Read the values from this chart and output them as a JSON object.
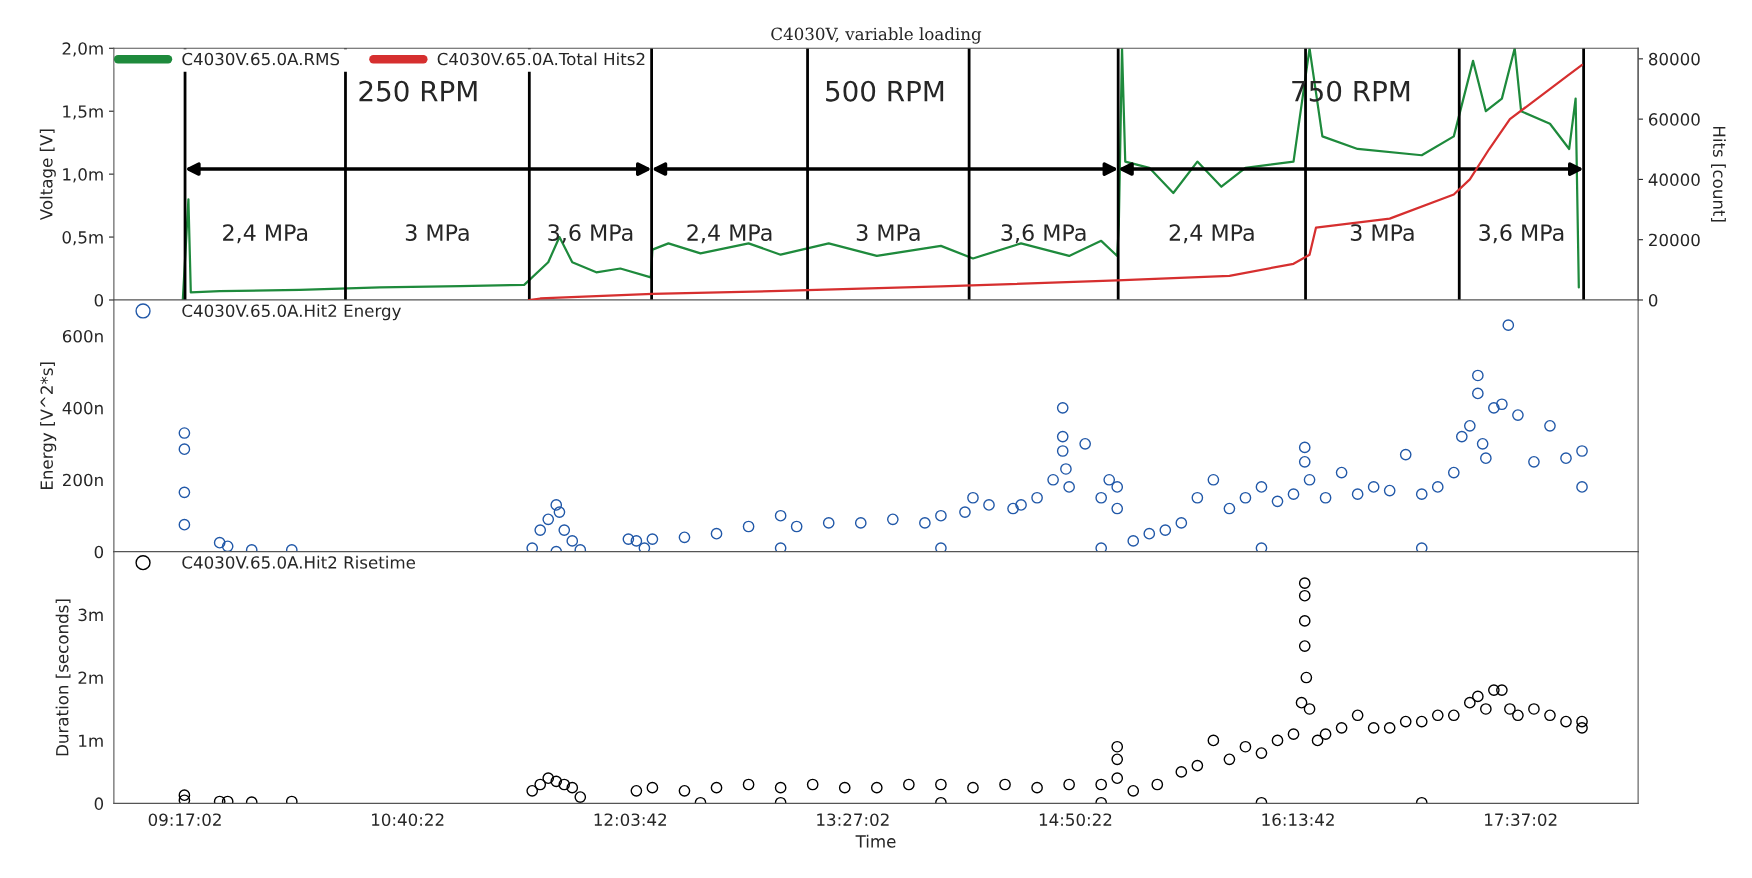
{
  "chart_data": [
    {
      "type": "line",
      "title": "C4030V, variable loading",
      "ylabel": "Voltage [V]",
      "y2label": "Hits [count]",
      "xlim": [
        8.84,
        18.35
      ],
      "ylim": [
        0,
        2.0
      ],
      "yticks": [
        0,
        {
          "value": 0.5,
          "label": "0,5m"
        },
        {
          "value": 1.0,
          "label": "1,0m"
        },
        {
          "value": 1.5,
          "label": "1,5m"
        },
        {
          "value": 2.0,
          "label": "2,0m"
        }
      ],
      "y2lim": [
        0,
        83500
      ],
      "y2ticks": [
        0,
        20000,
        40000,
        60000,
        80000
      ],
      "tick_labels": "y",
      "legend": "top left",
      "grid": false,
      "series": [
        {
          "name": "C4030V.65.0A.RMS",
          "color": "#1e8a3c",
          "axis": "y",
          "x": [
            9.27,
            9.305,
            9.32,
            9.5,
            10.0,
            10.5,
            11.0,
            11.4,
            11.55,
            11.62,
            11.7,
            11.85,
            12.0,
            12.19,
            12.2,
            12.3,
            12.5,
            12.8,
            13.0,
            13.3,
            13.6,
            14.0,
            14.2,
            14.5,
            14.8,
            15.0,
            15.1,
            15.11,
            15.13,
            15.15,
            15.3,
            15.45,
            15.6,
            15.75,
            15.9,
            16.2,
            16.3,
            16.38,
            16.6,
            17.0,
            17.2,
            17.32,
            17.4,
            17.5,
            17.58,
            17.62,
            17.8,
            17.92,
            17.96,
            17.98
          ],
          "values": [
            0,
            0.8,
            0.06,
            0.07,
            0.08,
            0.1,
            0.11,
            0.12,
            0.3,
            0.5,
            0.3,
            0.22,
            0.25,
            0.18,
            0.4,
            0.45,
            0.37,
            0.45,
            0.36,
            0.45,
            0.35,
            0.43,
            0.33,
            0.45,
            0.35,
            0.47,
            0.35,
            0.6,
            2.0,
            1.1,
            1.05,
            0.85,
            1.1,
            0.9,
            1.05,
            1.1,
            2.0,
            1.3,
            1.2,
            1.15,
            1.3,
            1.9,
            1.5,
            1.6,
            2.0,
            1.5,
            1.4,
            1.2,
            1.6,
            0.1
          ]
        },
        {
          "name": "C4030V.65.0A.Total Hits2",
          "color": "#d62f2f",
          "axis": "y2",
          "x": [
            11.43,
            11.5,
            12.2,
            13.0,
            14.0,
            15.1,
            15.8,
            16.2,
            16.3,
            16.34,
            16.8,
            17.2,
            17.3,
            17.42,
            17.55,
            17.7,
            17.9,
            18.0
          ],
          "values": [
            0,
            500,
            2000,
            3000,
            4500,
            6500,
            8000,
            12000,
            15000,
            24000,
            27000,
            35000,
            40000,
            50000,
            60000,
            66000,
            74000,
            78000
          ]
        }
      ],
      "ref_lines": [
        {
          "axis": "x",
          "value": 9.284
        },
        {
          "axis": "x",
          "value": 10.285
        },
        {
          "axis": "x",
          "value": 11.432
        },
        {
          "axis": "x",
          "value": 12.195
        },
        {
          "axis": "x",
          "value": 13.168
        },
        {
          "axis": "x",
          "value": 14.176
        },
        {
          "axis": "x",
          "value": 15.106
        },
        {
          "axis": "x",
          "value": 16.275
        },
        {
          "axis": "x",
          "value": 17.234
        },
        {
          "axis": "x",
          "value": 18.01
        }
      ],
      "annotations": [
        "250 RPM",
        "500 RPM",
        "750 RPM",
        "2,4 MPa",
        "3 MPa",
        "3,6 MPa",
        "2,4 MPa",
        "3 MPa",
        "3,6 MPa",
        "2,4 MPa",
        "3 MPa",
        "3,6 MPa"
      ]
    },
    {
      "type": "scatter",
      "ylabel": "Energy [V^2*s]",
      "marker": "circle",
      "legend": "top left",
      "tick_labels": "y",
      "xlim": [
        8.84,
        18.35
      ],
      "ylim": [
        0,
        700
      ],
      "yticks": [
        0,
        {
          "value": 200,
          "label": "200n"
        },
        {
          "value": 400,
          "label": "400n"
        },
        {
          "value": 600,
          "label": "600n"
        }
      ],
      "series": [
        {
          "name": "C4030V.65.0A.Hit2 Energy",
          "color": "#2158a8",
          "x": [
            9.28,
            9.28,
            9.28,
            9.28,
            9.5,
            9.55,
            9.7,
            9.95,
            11.45,
            11.5,
            11.55,
            11.6,
            11.62,
            11.65,
            11.7,
            11.75,
            11.6,
            12.05,
            12.1,
            12.15,
            12.2,
            12.4,
            12.6,
            12.8,
            13.0,
            13.1,
            13.3,
            13.5,
            13.7,
            13.9,
            14.0,
            14.15,
            14.2,
            14.3,
            14.45,
            14.5,
            14.6,
            14.7,
            14.76,
            14.76,
            14.76,
            14.78,
            14.8,
            14.9,
            15.0,
            15.05,
            15.1,
            15.1,
            15.2,
            15.3,
            15.4,
            15.5,
            15.6,
            15.7,
            15.8,
            15.9,
            16.0,
            16.1,
            16.2,
            16.27,
            16.27,
            16.3,
            16.4,
            16.5,
            16.6,
            16.7,
            16.8,
            16.9,
            17.0,
            17.1,
            17.2,
            17.25,
            17.3,
            17.35,
            17.35,
            17.38,
            17.4,
            17.45,
            17.5,
            17.54,
            17.6,
            17.7,
            17.8,
            17.9,
            18.0,
            18.0,
            16.0,
            17.0,
            15.0,
            14.0,
            13.0
          ],
          "values": [
            330,
            285,
            165,
            75,
            25,
            15,
            5,
            5,
            10,
            60,
            90,
            130,
            110,
            60,
            30,
            5,
            0,
            35,
            30,
            10,
            35,
            40,
            50,
            70,
            100,
            70,
            80,
            80,
            90,
            80,
            100,
            110,
            150,
            130,
            120,
            130,
            150,
            200,
            400,
            320,
            280,
            230,
            180,
            300,
            150,
            200,
            180,
            120,
            30,
            50,
            60,
            80,
            150,
            200,
            120,
            150,
            180,
            140,
            160,
            290,
            250,
            200,
            150,
            220,
            160,
            180,
            170,
            270,
            160,
            180,
            220,
            320,
            350,
            490,
            440,
            300,
            260,
            400,
            410,
            630,
            380,
            250,
            350,
            260,
            280,
            180,
            10,
            10,
            10,
            10,
            10
          ]
        }
      ]
    },
    {
      "type": "scatter",
      "ylabel": "Duration [seconds]",
      "xlabel": "Time",
      "marker": "circle",
      "legend": "top left",
      "xlim": [
        8.84,
        18.35
      ],
      "xticks": [
        {
          "value": 9.28389,
          "label": "09:17:02"
        },
        {
          "value": 10.67278,
          "label": "10:40:22"
        },
        {
          "value": 12.06167,
          "label": "12:03:42"
        },
        {
          "value": 13.45056,
          "label": "13:27:02"
        },
        {
          "value": 14.83944,
          "label": "14:50:22"
        },
        {
          "value": 16.22833,
          "label": "16:13:42"
        },
        {
          "value": 17.61722,
          "label": "17:37:02"
        }
      ],
      "ylim": [
        0,
        4
      ],
      "yticks": [
        0,
        {
          "value": 1,
          "label": "1m"
        },
        {
          "value": 2,
          "label": "2m"
        },
        {
          "value": 3,
          "label": "3m"
        }
      ],
      "series": [
        {
          "name": "C4030V.65.0A.Hit2 Risetime",
          "color": "#000000",
          "x": [
            9.28,
            9.28,
            9.5,
            9.55,
            9.7,
            9.95,
            11.45,
            11.5,
            11.55,
            11.6,
            11.65,
            11.7,
            11.75,
            12.1,
            12.2,
            12.4,
            12.6,
            12.8,
            13.0,
            13.2,
            13.4,
            13.6,
            13.8,
            14.0,
            14.2,
            14.4,
            14.6,
            14.8,
            15.0,
            15.1,
            15.1,
            15.1,
            15.2,
            15.35,
            15.5,
            15.6,
            15.7,
            15.8,
            15.9,
            16.0,
            16.1,
            16.2,
            16.25,
            16.27,
            16.27,
            16.27,
            16.27,
            16.28,
            16.3,
            16.35,
            16.4,
            16.5,
            16.6,
            16.7,
            16.8,
            16.9,
            17.0,
            17.1,
            17.2,
            17.3,
            17.35,
            17.4,
            17.45,
            17.5,
            17.55,
            17.6,
            17.7,
            17.8,
            17.9,
            18.0,
            18.0,
            17.0,
            16.0,
            15.0,
            14.0,
            13.0,
            12.5
          ],
          "values": [
            0.13,
            0.05,
            0.03,
            0.03,
            0.02,
            0.03,
            0.2,
            0.3,
            0.4,
            0.35,
            0.3,
            0.25,
            0.1,
            0.2,
            0.25,
            0.2,
            0.25,
            0.3,
            0.25,
            0.3,
            0.25,
            0.25,
            0.3,
            0.3,
            0.25,
            0.3,
            0.25,
            0.3,
            0.3,
            0.9,
            0.7,
            0.4,
            0.2,
            0.3,
            0.5,
            0.6,
            1.0,
            0.7,
            0.9,
            0.8,
            1.0,
            1.1,
            1.6,
            3.5,
            3.3,
            2.9,
            2.5,
            2.0,
            1.5,
            1.0,
            1.1,
            1.2,
            1.4,
            1.2,
            1.2,
            1.3,
            1.3,
            1.4,
            1.4,
            1.6,
            1.7,
            1.5,
            1.8,
            1.8,
            1.5,
            1.4,
            1.5,
            1.4,
            1.3,
            1.2,
            1.3,
            0.01,
            0.01,
            0.01,
            0.01,
            0.01,
            0.01
          ]
        }
      ]
    }
  ]
}
